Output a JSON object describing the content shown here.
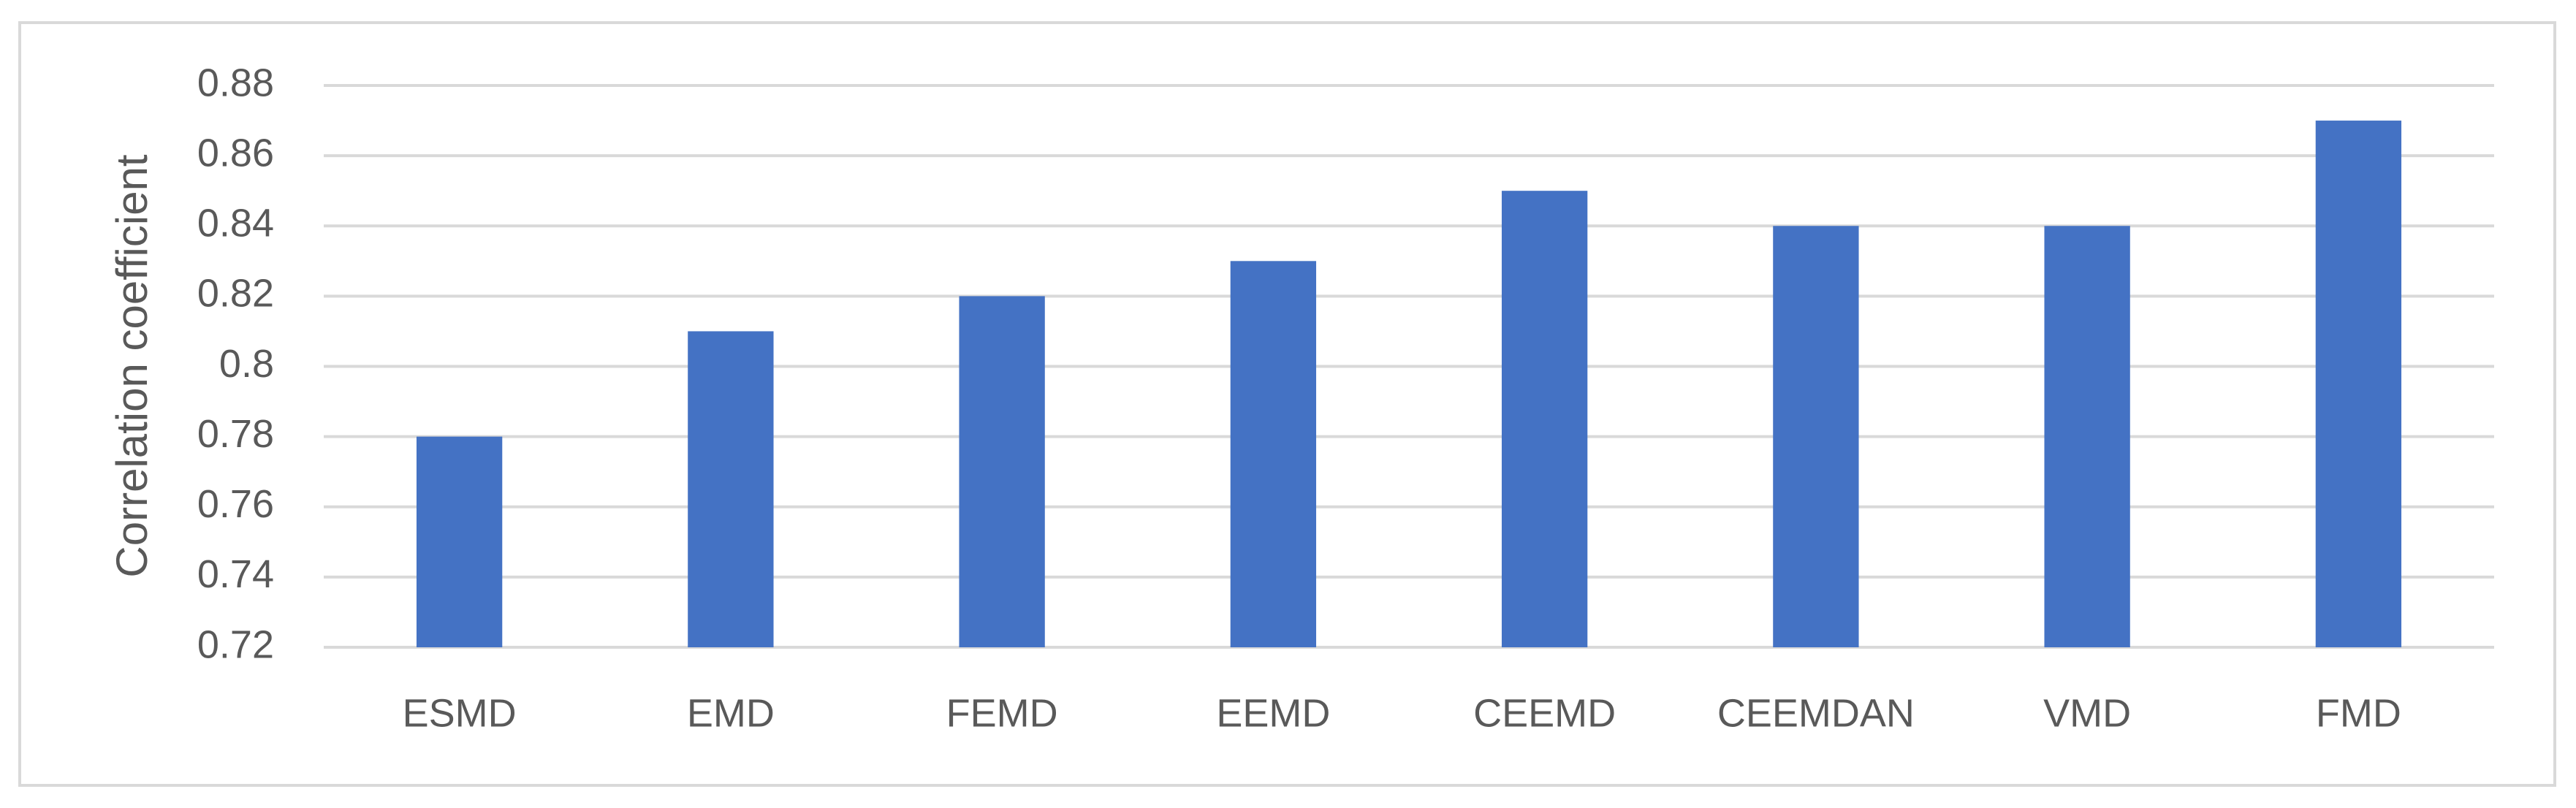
{
  "chart_data": {
    "type": "bar",
    "y_label": "Correlation coefficient",
    "categories": [
      "ESMD",
      "EMD",
      "FEMD",
      "EEMD",
      "CEEMD",
      "CEEMDAN",
      "VMD",
      "FMD"
    ],
    "values": [
      0.78,
      0.81,
      0.82,
      0.83,
      0.85,
      0.84,
      0.84,
      0.87
    ],
    "color": "#4472c4",
    "ylim": [
      0.72,
      0.88
    ],
    "yticks": [
      0.72,
      0.74,
      0.76,
      0.78,
      0.8,
      0.82,
      0.84,
      0.86,
      0.88
    ],
    "grid": true
  }
}
